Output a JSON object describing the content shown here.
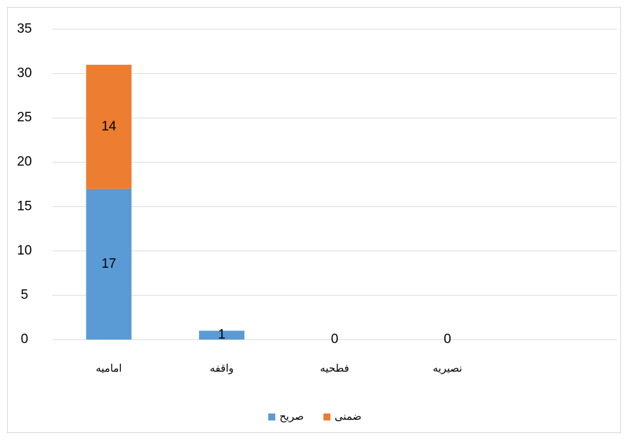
{
  "chart_data": {
    "type": "stacked_bar",
    "categories": [
      "اماميه",
      "واقفه",
      "فطحيه",
      "نصيريه",
      null
    ],
    "series": [
      {
        "name": "صريح",
        "color": "#5b9bd5",
        "values": [
          17,
          1,
          0,
          0,
          null
        ]
      },
      {
        "name": "ضمنى",
        "color": "#ed7d31",
        "values": [
          14,
          null,
          null,
          null,
          null
        ]
      }
    ],
    "ylim": [
      0,
      35
    ],
    "yticks": [
      0,
      5,
      10,
      15,
      20,
      25,
      30,
      35
    ],
    "grid": true
  }
}
